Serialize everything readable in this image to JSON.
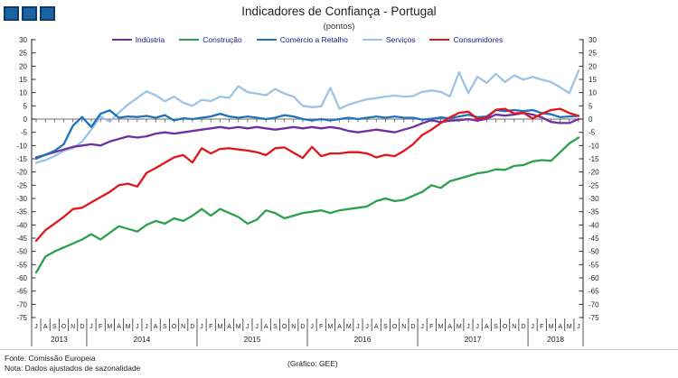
{
  "title": "Indicadores de Confiança - Portugal",
  "subtitle": "(pontos)",
  "footer": {
    "source_line1": "Fonte: Comissão Europeia",
    "source_line2": "Nota: Dados ajustados de sazonalidade",
    "credit": "(Gráfico: GEE)"
  },
  "chart_data": {
    "type": "line",
    "title": "Indicadores de Confiança - Portugal",
    "subtitle": "(pontos)",
    "ylim": [
      -75,
      30
    ],
    "ytick_step": 5,
    "grid": "zero-line-only",
    "legend_position": "top",
    "x_months": [
      "J",
      "A",
      "S",
      "O",
      "N",
      "D",
      "J",
      "F",
      "M",
      "A",
      "M",
      "J",
      "J",
      "A",
      "S",
      "O",
      "N",
      "D",
      "J",
      "F",
      "M",
      "A",
      "M",
      "J",
      "J",
      "A",
      "S",
      "O",
      "N",
      "D",
      "J",
      "F",
      "M",
      "A",
      "M",
      "J",
      "J",
      "A",
      "S",
      "O",
      "N",
      "D",
      "J",
      "F",
      "M",
      "A",
      "M",
      "J",
      "J",
      "A",
      "S",
      "O",
      "N",
      "D",
      "J",
      "F",
      "M",
      "A",
      "M",
      "J"
    ],
    "years": [
      {
        "label": "2013",
        "months": 6
      },
      {
        "label": "2014",
        "months": 12
      },
      {
        "label": "2015",
        "months": 12
      },
      {
        "label": "2016",
        "months": 12
      },
      {
        "label": "2017",
        "months": 12
      },
      {
        "label": "2018",
        "months": 6
      }
    ],
    "series": [
      {
        "name": "Indústria",
        "color": "#7030A0",
        "values": [
          -14.5,
          -13.5,
          -12.5,
          -11.5,
          -10.5,
          -10,
          -9.5,
          -10,
          -8.5,
          -7.5,
          -6.5,
          -7,
          -6.5,
          -5.5,
          -5,
          -5.5,
          -5,
          -4.5,
          -4,
          -3.5,
          -3,
          -3.5,
          -3,
          -3.5,
          -3,
          -3.5,
          -4,
          -3.5,
          -3,
          -3.5,
          -3,
          -3.5,
          -3,
          -3.5,
          -4.5,
          -5,
          -4.5,
          -4,
          -4.5,
          -5,
          -4,
          -3,
          -1.6,
          -0.4,
          -1.2,
          -0.6,
          -0.4,
          0,
          -0.6,
          0.1,
          1.7,
          1.3,
          1.7,
          2.3,
          1.7,
          0.6,
          -1.1,
          -1.5,
          -1.5,
          0
        ]
      },
      {
        "name": "Construção",
        "color": "#2CA04C",
        "values": [
          -58,
          -52,
          -50,
          -48.5,
          -47,
          -45.5,
          -43.5,
          -45.5,
          -43,
          -40.5,
          -41.5,
          -42.5,
          -40,
          -38.5,
          -39.5,
          -37.5,
          -38.5,
          -36.5,
          -34,
          -36.5,
          -34,
          -35.5,
          -37,
          -39.5,
          -38,
          -34.5,
          -35.5,
          -37.5,
          -36.5,
          -35.5,
          -35,
          -34.5,
          -35.5,
          -34.5,
          -34,
          -33.5,
          -33,
          -31,
          -30,
          -31,
          -30.5,
          -29,
          -27.5,
          -25,
          -26,
          -23.5,
          -22.5,
          -21.5,
          -20.5,
          -20,
          -19,
          -19.2,
          -17.7,
          -17.4,
          -16,
          -15.5,
          -15.8,
          -12.5,
          -9.2,
          -7
        ]
      },
      {
        "name": "Comércio a Retalho",
        "color": "#2272B8",
        "values": [
          -15,
          -13.5,
          -12,
          -9.5,
          -2.5,
          0.8,
          -3,
          2,
          3.3,
          0.5,
          1,
          0.8,
          1.2,
          0.5,
          1.5,
          -0.5,
          0.3,
          0,
          0.5,
          1,
          2,
          1,
          0.5,
          1,
          0.5,
          0,
          0.5,
          1.5,
          1,
          0,
          -0.5,
          0,
          -0.5,
          0,
          0.5,
          0,
          0.5,
          1,
          0.5,
          1,
          0.5,
          0.5,
          -0.2,
          0.1,
          0.6,
          0.3,
          1,
          1.6,
          0.7,
          1,
          3.4,
          3,
          3.4,
          3,
          3.4,
          2.3,
          1.8,
          0.7,
          1,
          1.2
        ]
      },
      {
        "name": "Serviços",
        "color": "#9DC3E6",
        "values": [
          -16.5,
          -15.5,
          -14,
          -12,
          -11,
          -8.5,
          -4,
          1,
          -1,
          2.5,
          5.5,
          8,
          10.5,
          9,
          6.7,
          8.5,
          6.2,
          5,
          7.3,
          6.8,
          8.5,
          8,
          12.4,
          10.2,
          9.6,
          9,
          11.4,
          9.6,
          8.5,
          5,
          4.5,
          4.8,
          11.8,
          3.9,
          5.5,
          6.5,
          7.5,
          7.9,
          8.5,
          8.9,
          8.5,
          8.7,
          10.3,
          10.8,
          10.3,
          8.6,
          17.7,
          9.8,
          16,
          13.7,
          17.1,
          14,
          16.5,
          14.9,
          16,
          14.9,
          14,
          12,
          9.8,
          18.3
        ]
      },
      {
        "name": "Consumidores",
        "color": "#E0161C",
        "values": [
          -46,
          -42,
          -39.5,
          -37,
          -34,
          -33.5,
          -31.5,
          -29.5,
          -27.5,
          -25,
          -24.4,
          -25.5,
          -20.4,
          -18.5,
          -16.5,
          -14.5,
          -13.6,
          -16.4,
          -11,
          -13,
          -11.3,
          -11,
          -11.5,
          -11.9,
          -12.5,
          -13.6,
          -11,
          -10.7,
          -12.7,
          -14.7,
          -10.5,
          -14,
          -13,
          -13,
          -12.5,
          -12.5,
          -13,
          -14.5,
          -13.5,
          -14,
          -12,
          -9.5,
          -6,
          -4,
          -1.5,
          0.6,
          2.4,
          2.8,
          0.1,
          0.5,
          3.5,
          3.9,
          2.1,
          2.4,
          0.2,
          2,
          3.4,
          3.9,
          2.3,
          1.2
        ]
      }
    ]
  }
}
